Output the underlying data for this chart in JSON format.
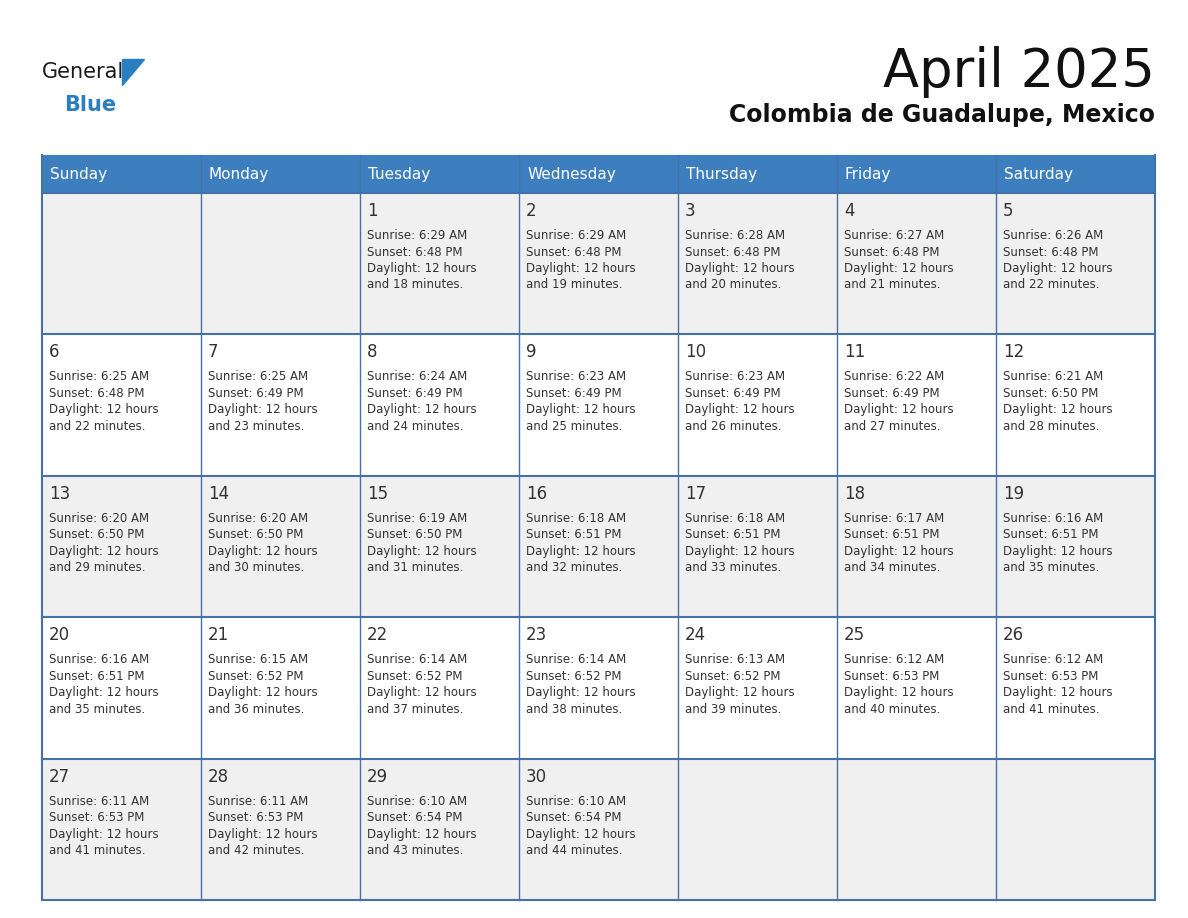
{
  "title": "April 2025",
  "subtitle": "Colombia de Guadalupe, Mexico",
  "header_bg": "#3d7ebf",
  "header_text_color": "#ffffff",
  "row_bg_odd": "#f0f0f0",
  "row_bg_even": "#ffffff",
  "border_color": "#4472a8",
  "text_color": "#333333",
  "days_of_week": [
    "Sunday",
    "Monday",
    "Tuesday",
    "Wednesday",
    "Thursday",
    "Friday",
    "Saturday"
  ],
  "weeks": [
    [
      {
        "day": null,
        "sunrise": null,
        "sunset": null,
        "daylight": null
      },
      {
        "day": null,
        "sunrise": null,
        "sunset": null,
        "daylight": null
      },
      {
        "day": 1,
        "sunrise": "6:29 AM",
        "sunset": "6:48 PM",
        "daylight": "12 hours and 18 minutes."
      },
      {
        "day": 2,
        "sunrise": "6:29 AM",
        "sunset": "6:48 PM",
        "daylight": "12 hours and 19 minutes."
      },
      {
        "day": 3,
        "sunrise": "6:28 AM",
        "sunset": "6:48 PM",
        "daylight": "12 hours and 20 minutes."
      },
      {
        "day": 4,
        "sunrise": "6:27 AM",
        "sunset": "6:48 PM",
        "daylight": "12 hours and 21 minutes."
      },
      {
        "day": 5,
        "sunrise": "6:26 AM",
        "sunset": "6:48 PM",
        "daylight": "12 hours and 22 minutes."
      }
    ],
    [
      {
        "day": 6,
        "sunrise": "6:25 AM",
        "sunset": "6:48 PM",
        "daylight": "12 hours and 22 minutes."
      },
      {
        "day": 7,
        "sunrise": "6:25 AM",
        "sunset": "6:49 PM",
        "daylight": "12 hours and 23 minutes."
      },
      {
        "day": 8,
        "sunrise": "6:24 AM",
        "sunset": "6:49 PM",
        "daylight": "12 hours and 24 minutes."
      },
      {
        "day": 9,
        "sunrise": "6:23 AM",
        "sunset": "6:49 PM",
        "daylight": "12 hours and 25 minutes."
      },
      {
        "day": 10,
        "sunrise": "6:23 AM",
        "sunset": "6:49 PM",
        "daylight": "12 hours and 26 minutes."
      },
      {
        "day": 11,
        "sunrise": "6:22 AM",
        "sunset": "6:49 PM",
        "daylight": "12 hours and 27 minutes."
      },
      {
        "day": 12,
        "sunrise": "6:21 AM",
        "sunset": "6:50 PM",
        "daylight": "12 hours and 28 minutes."
      }
    ],
    [
      {
        "day": 13,
        "sunrise": "6:20 AM",
        "sunset": "6:50 PM",
        "daylight": "12 hours and 29 minutes."
      },
      {
        "day": 14,
        "sunrise": "6:20 AM",
        "sunset": "6:50 PM",
        "daylight": "12 hours and 30 minutes."
      },
      {
        "day": 15,
        "sunrise": "6:19 AM",
        "sunset": "6:50 PM",
        "daylight": "12 hours and 31 minutes."
      },
      {
        "day": 16,
        "sunrise": "6:18 AM",
        "sunset": "6:51 PM",
        "daylight": "12 hours and 32 minutes."
      },
      {
        "day": 17,
        "sunrise": "6:18 AM",
        "sunset": "6:51 PM",
        "daylight": "12 hours and 33 minutes."
      },
      {
        "day": 18,
        "sunrise": "6:17 AM",
        "sunset": "6:51 PM",
        "daylight": "12 hours and 34 minutes."
      },
      {
        "day": 19,
        "sunrise": "6:16 AM",
        "sunset": "6:51 PM",
        "daylight": "12 hours and 35 minutes."
      }
    ],
    [
      {
        "day": 20,
        "sunrise": "6:16 AM",
        "sunset": "6:51 PM",
        "daylight": "12 hours and 35 minutes."
      },
      {
        "day": 21,
        "sunrise": "6:15 AM",
        "sunset": "6:52 PM",
        "daylight": "12 hours and 36 minutes."
      },
      {
        "day": 22,
        "sunrise": "6:14 AM",
        "sunset": "6:52 PM",
        "daylight": "12 hours and 37 minutes."
      },
      {
        "day": 23,
        "sunrise": "6:14 AM",
        "sunset": "6:52 PM",
        "daylight": "12 hours and 38 minutes."
      },
      {
        "day": 24,
        "sunrise": "6:13 AM",
        "sunset": "6:52 PM",
        "daylight": "12 hours and 39 minutes."
      },
      {
        "day": 25,
        "sunrise": "6:12 AM",
        "sunset": "6:53 PM",
        "daylight": "12 hours and 40 minutes."
      },
      {
        "day": 26,
        "sunrise": "6:12 AM",
        "sunset": "6:53 PM",
        "daylight": "12 hours and 41 minutes."
      }
    ],
    [
      {
        "day": 27,
        "sunrise": "6:11 AM",
        "sunset": "6:53 PM",
        "daylight": "12 hours and 41 minutes."
      },
      {
        "day": 28,
        "sunrise": "6:11 AM",
        "sunset": "6:53 PM",
        "daylight": "12 hours and 42 minutes."
      },
      {
        "day": 29,
        "sunrise": "6:10 AM",
        "sunset": "6:54 PM",
        "daylight": "12 hours and 43 minutes."
      },
      {
        "day": 30,
        "sunrise": "6:10 AM",
        "sunset": "6:54 PM",
        "daylight": "12 hours and 44 minutes."
      },
      {
        "day": null,
        "sunrise": null,
        "sunset": null,
        "daylight": null
      },
      {
        "day": null,
        "sunrise": null,
        "sunset": null,
        "daylight": null
      },
      {
        "day": null,
        "sunrise": null,
        "sunset": null,
        "daylight": null
      }
    ]
  ],
  "logo_text_general": "General",
  "logo_text_blue": "Blue",
  "logo_color_general": "#1a1a1a",
  "logo_color_blue": "#2b7fc1",
  "logo_triangle_color": "#2b7fc1",
  "title_fontsize": 38,
  "subtitle_fontsize": 17,
  "header_fontsize": 11,
  "day_num_fontsize": 12,
  "cell_text_fontsize": 8.5
}
